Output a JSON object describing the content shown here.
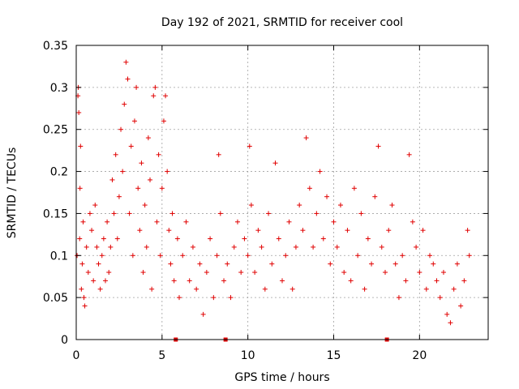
{
  "chart_data": {
    "type": "scatter",
    "title": "Day 192 of 2021, SRMTID for receiver cool",
    "xlabel": "GPS time / hours",
    "ylabel": "SRMTID / TECUs",
    "xlim": [
      0,
      24
    ],
    "ylim": [
      0,
      0.35
    ],
    "xticks": [
      0,
      5,
      10,
      15,
      20
    ],
    "xtick_labels": [
      "0",
      "5",
      "10",
      "15",
      "20"
    ],
    "yticks": [
      0,
      0.05,
      0.1,
      0.15,
      0.2,
      0.25,
      0.3,
      0.35
    ],
    "ytick_labels": [
      "0",
      "0.05",
      "0.1",
      "0.15",
      "0.2",
      "0.25",
      "0.3",
      "0.35"
    ],
    "grid": true,
    "marker": "+",
    "color": "#e00000",
    "data_gap_markers_x": [
      5.8,
      8.7,
      18.1
    ],
    "series": [
      {
        "name": "SRMTID",
        "points": [
          [
            0.05,
            0.1
          ],
          [
            0.1,
            0.29
          ],
          [
            0.12,
            0.3
          ],
          [
            0.15,
            0.27
          ],
          [
            0.2,
            0.12
          ],
          [
            0.22,
            0.18
          ],
          [
            0.25,
            0.23
          ],
          [
            0.3,
            0.06
          ],
          [
            0.35,
            0.09
          ],
          [
            0.4,
            0.14
          ],
          [
            0.45,
            0.05
          ],
          [
            0.5,
            0.04
          ],
          [
            0.6,
            0.11
          ],
          [
            0.7,
            0.08
          ],
          [
            0.8,
            0.15
          ],
          [
            0.9,
            0.13
          ],
          [
            1.0,
            0.07
          ],
          [
            1.1,
            0.16
          ],
          [
            1.2,
            0.11
          ],
          [
            1.3,
            0.09
          ],
          [
            1.4,
            0.06
          ],
          [
            1.5,
            0.1
          ],
          [
            1.6,
            0.12
          ],
          [
            1.7,
            0.07
          ],
          [
            1.8,
            0.14
          ],
          [
            1.9,
            0.08
          ],
          [
            2.0,
            0.11
          ],
          [
            2.1,
            0.19
          ],
          [
            2.2,
            0.15
          ],
          [
            2.3,
            0.22
          ],
          [
            2.4,
            0.12
          ],
          [
            2.5,
            0.17
          ],
          [
            2.6,
            0.25
          ],
          [
            2.7,
            0.2
          ],
          [
            2.8,
            0.28
          ],
          [
            2.9,
            0.33
          ],
          [
            3.0,
            0.31
          ],
          [
            3.1,
            0.15
          ],
          [
            3.2,
            0.23
          ],
          [
            3.3,
            0.1
          ],
          [
            3.4,
            0.26
          ],
          [
            3.5,
            0.3
          ],
          [
            3.6,
            0.18
          ],
          [
            3.7,
            0.13
          ],
          [
            3.8,
            0.21
          ],
          [
            3.9,
            0.08
          ],
          [
            4.0,
            0.16
          ],
          [
            4.1,
            0.11
          ],
          [
            4.2,
            0.24
          ],
          [
            4.3,
            0.19
          ],
          [
            4.4,
            0.06
          ],
          [
            4.5,
            0.29
          ],
          [
            4.6,
            0.3
          ],
          [
            4.7,
            0.14
          ],
          [
            4.8,
            0.22
          ],
          [
            4.9,
            0.1
          ],
          [
            5.0,
            0.18
          ],
          [
            5.1,
            0.26
          ],
          [
            5.2,
            0.29
          ],
          [
            5.3,
            0.2
          ],
          [
            5.4,
            0.13
          ],
          [
            5.5,
            0.09
          ],
          [
            5.6,
            0.15
          ],
          [
            5.7,
            0.07
          ],
          [
            5.9,
            0.12
          ],
          [
            6.0,
            0.05
          ],
          [
            6.2,
            0.1
          ],
          [
            6.4,
            0.14
          ],
          [
            6.6,
            0.07
          ],
          [
            6.8,
            0.11
          ],
          [
            7.0,
            0.06
          ],
          [
            7.2,
            0.09
          ],
          [
            7.4,
            0.03
          ],
          [
            7.6,
            0.08
          ],
          [
            7.8,
            0.12
          ],
          [
            8.0,
            0.05
          ],
          [
            8.2,
            0.1
          ],
          [
            8.3,
            0.22
          ],
          [
            8.4,
            0.15
          ],
          [
            8.6,
            0.07
          ],
          [
            8.8,
            0.09
          ],
          [
            9.0,
            0.05
          ],
          [
            9.2,
            0.11
          ],
          [
            9.4,
            0.14
          ],
          [
            9.6,
            0.08
          ],
          [
            9.8,
            0.12
          ],
          [
            10.0,
            0.1
          ],
          [
            10.1,
            0.23
          ],
          [
            10.2,
            0.16
          ],
          [
            10.4,
            0.08
          ],
          [
            10.6,
            0.13
          ],
          [
            10.8,
            0.11
          ],
          [
            11.0,
            0.06
          ],
          [
            11.2,
            0.15
          ],
          [
            11.4,
            0.09
          ],
          [
            11.6,
            0.21
          ],
          [
            11.8,
            0.12
          ],
          [
            12.0,
            0.07
          ],
          [
            12.2,
            0.1
          ],
          [
            12.4,
            0.14
          ],
          [
            12.6,
            0.06
          ],
          [
            12.8,
            0.11
          ],
          [
            13.0,
            0.16
          ],
          [
            13.2,
            0.13
          ],
          [
            13.4,
            0.24
          ],
          [
            13.6,
            0.18
          ],
          [
            13.8,
            0.11
          ],
          [
            14.0,
            0.15
          ],
          [
            14.2,
            0.2
          ],
          [
            14.4,
            0.12
          ],
          [
            14.6,
            0.17
          ],
          [
            14.8,
            0.09
          ],
          [
            15.0,
            0.14
          ],
          [
            15.2,
            0.11
          ],
          [
            15.4,
            0.16
          ],
          [
            15.6,
            0.08
          ],
          [
            15.8,
            0.13
          ],
          [
            16.0,
            0.07
          ],
          [
            16.2,
            0.18
          ],
          [
            16.4,
            0.1
          ],
          [
            16.6,
            0.15
          ],
          [
            16.8,
            0.06
          ],
          [
            17.0,
            0.12
          ],
          [
            17.2,
            0.09
          ],
          [
            17.4,
            0.17
          ],
          [
            17.6,
            0.23
          ],
          [
            17.8,
            0.11
          ],
          [
            18.0,
            0.08
          ],
          [
            18.2,
            0.13
          ],
          [
            18.4,
            0.16
          ],
          [
            18.6,
            0.09
          ],
          [
            18.8,
            0.05
          ],
          [
            19.0,
            0.1
          ],
          [
            19.2,
            0.07
          ],
          [
            19.4,
            0.22
          ],
          [
            19.6,
            0.14
          ],
          [
            19.8,
            0.11
          ],
          [
            20.0,
            0.08
          ],
          [
            20.2,
            0.13
          ],
          [
            20.4,
            0.06
          ],
          [
            20.6,
            0.1
          ],
          [
            20.8,
            0.09
          ],
          [
            21.0,
            0.07
          ],
          [
            21.2,
            0.05
          ],
          [
            21.4,
            0.08
          ],
          [
            21.6,
            0.03
          ],
          [
            21.8,
            0.02
          ],
          [
            22.0,
            0.06
          ],
          [
            22.2,
            0.09
          ],
          [
            22.4,
            0.04
          ],
          [
            22.6,
            0.07
          ],
          [
            22.8,
            0.13
          ],
          [
            22.9,
            0.1
          ]
        ]
      }
    ]
  }
}
